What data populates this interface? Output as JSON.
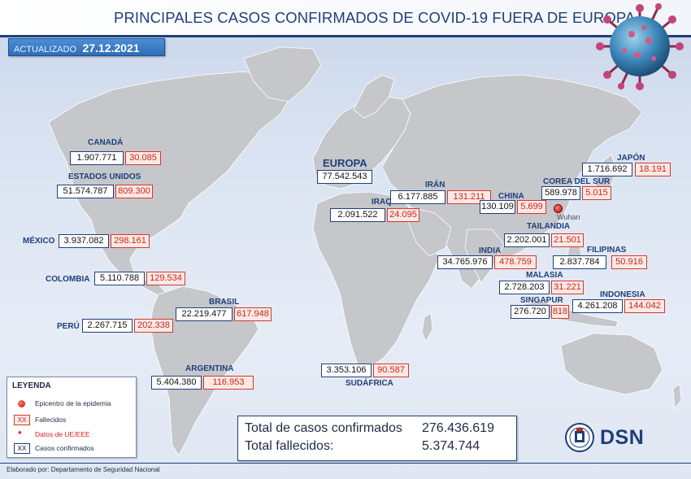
{
  "header": {
    "title": "PRINCIPALES CASOS CONFIRMADOS DE COVID-19 FUERA DE EUROPA",
    "updated_label": "ACTUALIZADO",
    "updated_date": "27.12.2021"
  },
  "regions": {
    "canada": {
      "name": "CANADÁ",
      "cases": "1.907.771",
      "deaths": "30.085"
    },
    "usa": {
      "name": "ESTADOS UNIDOS",
      "cases": "51.574.787",
      "deaths": "809.300"
    },
    "mexico": {
      "name": "MÉXICO",
      "cases": "3.937.082",
      "deaths": "298.161"
    },
    "colombia": {
      "name": "COLOMBIA",
      "cases": "5.110.788",
      "deaths": "129.534"
    },
    "peru": {
      "name": "PERÚ",
      "cases": "2.267.715",
      "deaths": "202.338"
    },
    "brasil": {
      "name": "BRASIL",
      "cases": "22.219.477",
      "deaths": "617.948"
    },
    "argentina": {
      "name": "ARGENTINA",
      "cases": "5.404.380",
      "deaths": "116.953"
    },
    "europa": {
      "name": "EUROPA",
      "cases": "77.542.543"
    },
    "iraq": {
      "name": "IRAQ",
      "cases": "2.091.522",
      "deaths": "24.095"
    },
    "iran": {
      "name": "IRÁN",
      "cases": "6.177.885",
      "deaths": "131.211"
    },
    "sudafrica": {
      "name": "SUDÁFRICA",
      "cases": "3.353.106",
      "deaths": "90.587"
    },
    "india": {
      "name": "INDIA",
      "cases": "34.765.976",
      "deaths": "478.759"
    },
    "china": {
      "name": "CHINA",
      "cases": "130.109",
      "deaths": "5.699"
    },
    "corea": {
      "name": "COREA DEL SUR",
      "cases": "589.978",
      "deaths": "5.015"
    },
    "japon": {
      "name": "JAPÓN",
      "cases": "1.716.692",
      "deaths": "18.191"
    },
    "tailandia": {
      "name": "TAILANDIA",
      "cases": "2.202.001",
      "deaths": "21.501"
    },
    "filipinas": {
      "name": "FILIPINAS",
      "cases": "2.837.784",
      "deaths": "50.916"
    },
    "malasia": {
      "name": "MALASIA",
      "cases": "2.728.203",
      "deaths": "31.221"
    },
    "singapur": {
      "name": "SINGAPUR",
      "cases": "276.720",
      "deaths": "818"
    },
    "indonesia": {
      "name": "INDONESIA",
      "cases": "4.261.208",
      "deaths": "144.042"
    }
  },
  "wuhan_label": "Wuhan",
  "legend": {
    "title": "LEYENDA",
    "epicenter": "Epicentro de la epidemia",
    "deaths_sample": "XX",
    "deaths": "Fallecidos",
    "eu_marker": "*",
    "eu": "Datos de UE/EEE",
    "cases_sample": "XX",
    "cases": "Casos confirmados"
  },
  "totals": {
    "cases_label": "Total de casos confirmados",
    "cases_value": "276.436.619",
    "deaths_label": "Total fallecidos:",
    "deaths_value": "5.374.744"
  },
  "footer": "Elaborado por: Departamento de Seguridad Nacional",
  "logo_text": "DSN",
  "colors": {
    "title": "#1f3f7a",
    "deaths": "#c8271a",
    "land": "#c5c7cb",
    "ocean": "#dbe4f2"
  }
}
